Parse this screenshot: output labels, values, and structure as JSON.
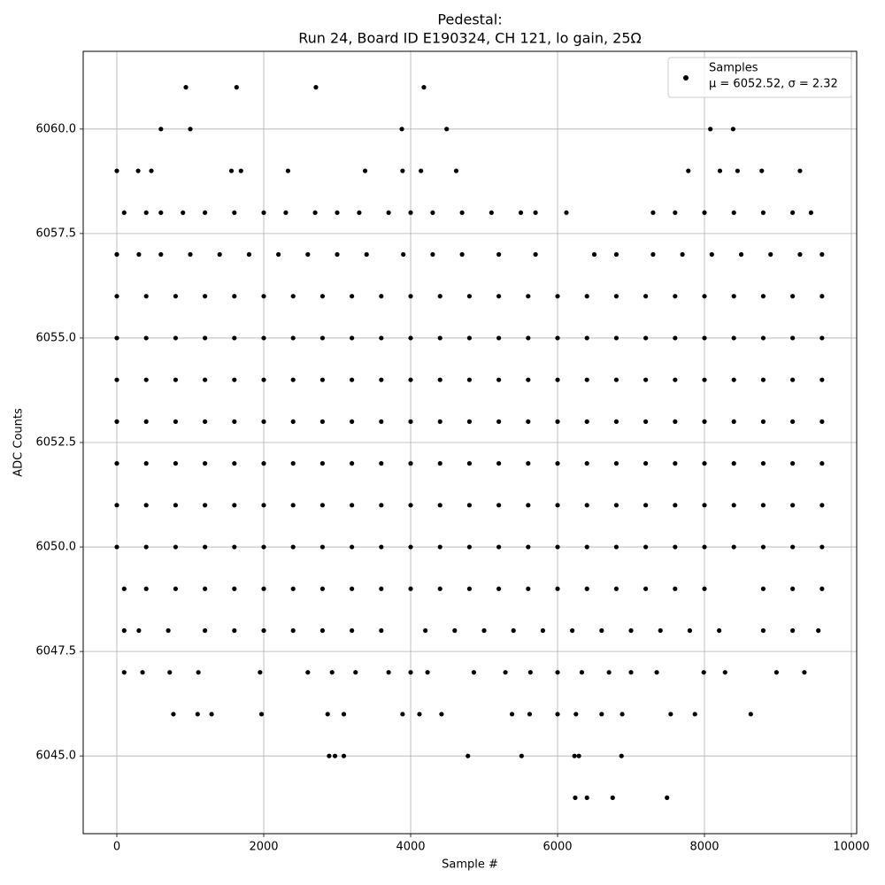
{
  "chart_data": {
    "type": "scatter",
    "title": "Pedestal:",
    "subtitle": "Run 24, Board ID E190324, CH 121, lo gain, 25Ω",
    "x_label": "Sample #",
    "y_label": "ADC Counts",
    "legend_text": "μ = 6052.52, σ = 2.32",
    "legend_position": "upper right",
    "grid": true,
    "xlim": [
      -458,
      10072
    ],
    "ylim": [
      6043.14,
      6061.86
    ],
    "xticks": [
      0,
      2000,
      4000,
      6000,
      8000,
      10000
    ],
    "yticks": [
      {
        "value": 6045,
        "label": "6045.0"
      },
      6047.5,
      {
        "value": 6050,
        "label": "6050.0"
      },
      6052.5,
      {
        "value": 6055,
        "label": "6055.0"
      },
      6057.5,
      {
        "value": 6060,
        "label": "6060.0"
      }
    ],
    "series": [
      {
        "name": "Samples",
        "color": "#000000",
        "x": [
          940,
          1630,
          2710,
          4180,
          600,
          1000,
          3880,
          4490,
          8080,
          8390,
          0,
          290,
          470,
          1560,
          1690,
          2330,
          3380,
          3890,
          4140,
          4620,
          7780,
          8210,
          8450,
          8780,
          9300,
          100,
          400,
          600,
          900,
          1200,
          1600,
          2000,
          2300,
          2700,
          3000,
          3300,
          3700,
          4000,
          4300,
          4700,
          5100,
          5500,
          5700,
          6120,
          7300,
          7600,
          8000,
          8400,
          8800,
          9200,
          9450,
          0,
          300,
          600,
          1000,
          1400,
          1800,
          2200,
          2600,
          3000,
          3400,
          3900,
          4300,
          4700,
          5200,
          5700,
          6500,
          6800,
          7300,
          7700,
          8100,
          8500,
          8900,
          9300,
          9600,
          0,
          400,
          800,
          1200,
          1600,
          2000,
          2400,
          2800,
          3200,
          3600,
          4000,
          4400,
          4800,
          5200,
          5600,
          6000,
          6400,
          6800,
          7200,
          7600,
          8000,
          8400,
          8800,
          9200,
          9600,
          0,
          400,
          800,
          1200,
          1600,
          2000,
          2400,
          2800,
          3200,
          3600,
          4000,
          4400,
          4800,
          5200,
          5600,
          6000,
          6400,
          6800,
          7200,
          7600,
          8000,
          8400,
          8800,
          9200,
          9600,
          0,
          400,
          800,
          1200,
          1600,
          2000,
          2400,
          2800,
          3200,
          3600,
          4000,
          4400,
          4800,
          5200,
          5600,
          6000,
          6400,
          6800,
          7200,
          7600,
          8000,
          8400,
          8800,
          9200,
          9600,
          0,
          400,
          800,
          1200,
          1600,
          2000,
          2400,
          2800,
          3200,
          3600,
          4000,
          4400,
          4800,
          5200,
          5600,
          6000,
          6400,
          6800,
          7200,
          7600,
          8000,
          8400,
          8800,
          9200,
          9600,
          0,
          400,
          800,
          1200,
          1600,
          2000,
          2400,
          2800,
          3200,
          3600,
          4000,
          4400,
          4800,
          5200,
          5600,
          6000,
          6400,
          6800,
          7200,
          7600,
          8000,
          8400,
          8800,
          9200,
          9600,
          0,
          400,
          800,
          1200,
          1600,
          2000,
          2400,
          2800,
          3200,
          3600,
          4000,
          4400,
          4800,
          5200,
          5600,
          6000,
          6400,
          6800,
          7200,
          7600,
          8000,
          8400,
          8800,
          9200,
          9600,
          0,
          400,
          800,
          1200,
          1600,
          2000,
          2400,
          2800,
          3200,
          3600,
          4000,
          4400,
          4800,
          5200,
          5600,
          6000,
          6400,
          6800,
          7200,
          7600,
          8000,
          8400,
          8800,
          9200,
          9600,
          100,
          400,
          800,
          1200,
          1600,
          2000,
          2400,
          2800,
          3200,
          3600,
          4000,
          4400,
          4800,
          5200,
          5600,
          6000,
          6400,
          6800,
          7200,
          7600,
          8000,
          8800,
          9200,
          9600,
          100,
          300,
          700,
          1200,
          1600,
          2000,
          2400,
          2800,
          3200,
          3600,
          4200,
          4600,
          5000,
          5400,
          5800,
          6200,
          6600,
          7000,
          7400,
          7800,
          8200,
          8800,
          9200,
          9550,
          100,
          350,
          720,
          1110,
          1950,
          2600,
          2930,
          3250,
          3700,
          4000,
          4230,
          4860,
          5290,
          5630,
          6000,
          6330,
          6700,
          7000,
          7350,
          7990,
          8280,
          8980,
          9360,
          770,
          1100,
          1290,
          1970,
          2870,
          3090,
          3890,
          4120,
          4420,
          5380,
          5620,
          6000,
          6250,
          6600,
          6880,
          7540,
          7870,
          8630,
          2890,
          2970,
          3090,
          4780,
          5510,
          6230,
          6290,
          6870,
          6240,
          6400,
          6750,
          7490
        ],
        "values": [
          6061,
          6061,
          6061,
          6061,
          6060,
          6060,
          6060,
          6060,
          6060,
          6060,
          6059,
          6059,
          6059,
          6059,
          6059,
          6059,
          6059,
          6059,
          6059,
          6059,
          6059,
          6059,
          6059,
          6059,
          6059,
          6058,
          6058,
          6058,
          6058,
          6058,
          6058,
          6058,
          6058,
          6058,
          6058,
          6058,
          6058,
          6058,
          6058,
          6058,
          6058,
          6058,
          6058,
          6058,
          6058,
          6058,
          6058,
          6058,
          6058,
          6058,
          6058,
          6057,
          6057,
          6057,
          6057,
          6057,
          6057,
          6057,
          6057,
          6057,
          6057,
          6057,
          6057,
          6057,
          6057,
          6057,
          6057,
          6057,
          6057,
          6057,
          6057,
          6057,
          6057,
          6057,
          6057,
          6056,
          6056,
          6056,
          6056,
          6056,
          6056,
          6056,
          6056,
          6056,
          6056,
          6056,
          6056,
          6056,
          6056,
          6056,
          6056,
          6056,
          6056,
          6056,
          6056,
          6056,
          6056,
          6056,
          6056,
          6056,
          6055,
          6055,
          6055,
          6055,
          6055,
          6055,
          6055,
          6055,
          6055,
          6055,
          6055,
          6055,
          6055,
          6055,
          6055,
          6055,
          6055,
          6055,
          6055,
          6055,
          6055,
          6055,
          6055,
          6055,
          6055,
          6054,
          6054,
          6054,
          6054,
          6054,
          6054,
          6054,
          6054,
          6054,
          6054,
          6054,
          6054,
          6054,
          6054,
          6054,
          6054,
          6054,
          6054,
          6054,
          6054,
          6054,
          6054,
          6054,
          6054,
          6054,
          6053,
          6053,
          6053,
          6053,
          6053,
          6053,
          6053,
          6053,
          6053,
          6053,
          6053,
          6053,
          6053,
          6053,
          6053,
          6053,
          6053,
          6053,
          6053,
          6053,
          6053,
          6053,
          6053,
          6053,
          6053,
          6052,
          6052,
          6052,
          6052,
          6052,
          6052,
          6052,
          6052,
          6052,
          6052,
          6052,
          6052,
          6052,
          6052,
          6052,
          6052,
          6052,
          6052,
          6052,
          6052,
          6052,
          6052,
          6052,
          6052,
          6052,
          6051,
          6051,
          6051,
          6051,
          6051,
          6051,
          6051,
          6051,
          6051,
          6051,
          6051,
          6051,
          6051,
          6051,
          6051,
          6051,
          6051,
          6051,
          6051,
          6051,
          6051,
          6051,
          6051,
          6051,
          6051,
          6050,
          6050,
          6050,
          6050,
          6050,
          6050,
          6050,
          6050,
          6050,
          6050,
          6050,
          6050,
          6050,
          6050,
          6050,
          6050,
          6050,
          6050,
          6050,
          6050,
          6050,
          6050,
          6050,
          6050,
          6050,
          6049,
          6049,
          6049,
          6049,
          6049,
          6049,
          6049,
          6049,
          6049,
          6049,
          6049,
          6049,
          6049,
          6049,
          6049,
          6049,
          6049,
          6049,
          6049,
          6049,
          6049,
          6049,
          6049,
          6049,
          6048,
          6048,
          6048,
          6048,
          6048,
          6048,
          6048,
          6048,
          6048,
          6048,
          6048,
          6048,
          6048,
          6048,
          6048,
          6048,
          6048,
          6048,
          6048,
          6048,
          6048,
          6048,
          6048,
          6048,
          6047,
          6047,
          6047,
          6047,
          6047,
          6047,
          6047,
          6047,
          6047,
          6047,
          6047,
          6047,
          6047,
          6047,
          6047,
          6047,
          6047,
          6047,
          6047,
          6047,
          6047,
          6047,
          6047,
          6046,
          6046,
          6046,
          6046,
          6046,
          6046,
          6046,
          6046,
          6046,
          6046,
          6046,
          6046,
          6046,
          6046,
          6046,
          6046,
          6046,
          6046,
          6045,
          6045,
          6045,
          6045,
          6045,
          6045,
          6045,
          6045,
          6044,
          6044,
          6044,
          6044
        ]
      }
    ]
  }
}
